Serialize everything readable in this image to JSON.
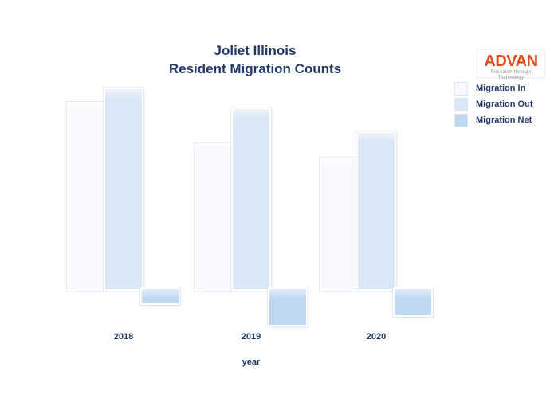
{
  "page": {
    "background": "#ffffff",
    "text_color": "#223a67"
  },
  "title": {
    "line1": "Joliet Illinois",
    "line2": "Resident Migration Counts",
    "color": "#223a67"
  },
  "logo": {
    "brand": "ADVAN",
    "tagline": "Research through Technology",
    "brand_color": "#e64a19",
    "tagline_color": "#8a8f98",
    "background": "#ffffff"
  },
  "legend": {
    "position": "top-right",
    "items": [
      {
        "label": "Migration In",
        "color": "#f7f9fe"
      },
      {
        "label": "Migration Out",
        "color": "#dae7f6"
      },
      {
        "label": "Migration Net",
        "color": "#bed8f0"
      }
    ]
  },
  "x_axis": {
    "title": "year",
    "ticks": [
      "2018",
      "2019",
      "2020"
    ]
  },
  "chart_data": {
    "type": "bar",
    "title": "Joliet Illinois Resident Migration Counts",
    "categories": [
      "2018",
      "2019",
      "2020"
    ],
    "series": [
      {
        "name": "Migration In",
        "color": "#f7f9fe",
        "values": [
          93,
          72,
          65
        ]
      },
      {
        "name": "Migration Out",
        "color": "#dae7f6",
        "values": [
          100,
          90,
          78
        ]
      },
      {
        "name": "Migration Net",
        "color": "#bed8f0",
        "values": [
          -7,
          -18,
          -13
        ]
      }
    ],
    "xlabel": "year",
    "ylabel": "",
    "y_axis_visible": false,
    "gridlines": false,
    "legend_position": "top-right",
    "units_note": "No y-axis or value labels are shown in the figure; values are relative bar heights scaled so Migration Out 2018 = 100. Net bars are negative (Net = In - Out) and hang below the baseline."
  }
}
